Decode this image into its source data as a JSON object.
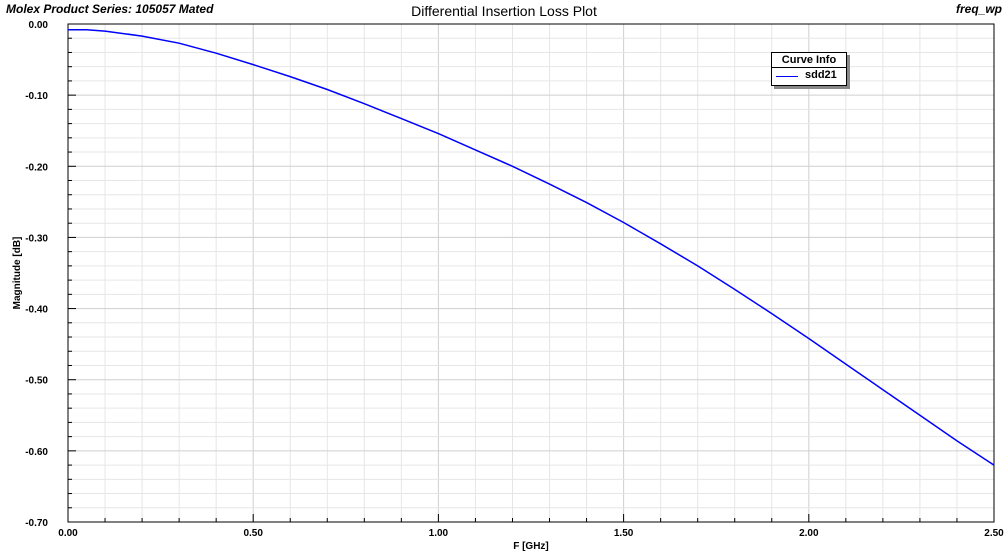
{
  "header": {
    "left": "Molex Product Series: 105057 Mated",
    "title": "Differential Insertion Loss Plot",
    "right": "freq_wp"
  },
  "legend": {
    "title": "Curve Info",
    "entries": [
      {
        "name": "sdd21",
        "color": "#0000ff"
      }
    ]
  },
  "chart_data": {
    "type": "line",
    "title": "Differential Insertion Loss Plot",
    "xlabel": "F [GHz]",
    "ylabel": "Magnitude [dB]",
    "xlim": [
      0,
      2.5
    ],
    "ylim": [
      -0.7,
      0.0
    ],
    "xticks": [
      "0.00",
      "0.50",
      "1.00",
      "1.50",
      "2.00",
      "2.50"
    ],
    "yticks": [
      "0.00",
      "-0.10",
      "-0.20",
      "-0.30",
      "-0.40",
      "-0.50",
      "-0.60",
      "-0.70"
    ],
    "grid": true,
    "legend_position": "top-right",
    "series": [
      {
        "name": "sdd21",
        "color": "#0000ff",
        "x": [
          0.0,
          0.05,
          0.1,
          0.2,
          0.3,
          0.4,
          0.5,
          0.6,
          0.7,
          0.8,
          0.9,
          1.0,
          1.1,
          1.2,
          1.3,
          1.4,
          1.5,
          1.6,
          1.7,
          1.8,
          1.9,
          2.0,
          2.1,
          2.2,
          2.3,
          2.4,
          2.5
        ],
        "y": [
          -0.008,
          -0.008,
          -0.01,
          -0.017,
          -0.027,
          -0.041,
          -0.057,
          -0.074,
          -0.092,
          -0.112,
          -0.133,
          -0.154,
          -0.177,
          -0.2,
          -0.225,
          -0.251,
          -0.279,
          -0.309,
          -0.34,
          -0.373,
          -0.407,
          -0.442,
          -0.478,
          -0.514,
          -0.55,
          -0.586,
          -0.62
        ]
      }
    ]
  }
}
